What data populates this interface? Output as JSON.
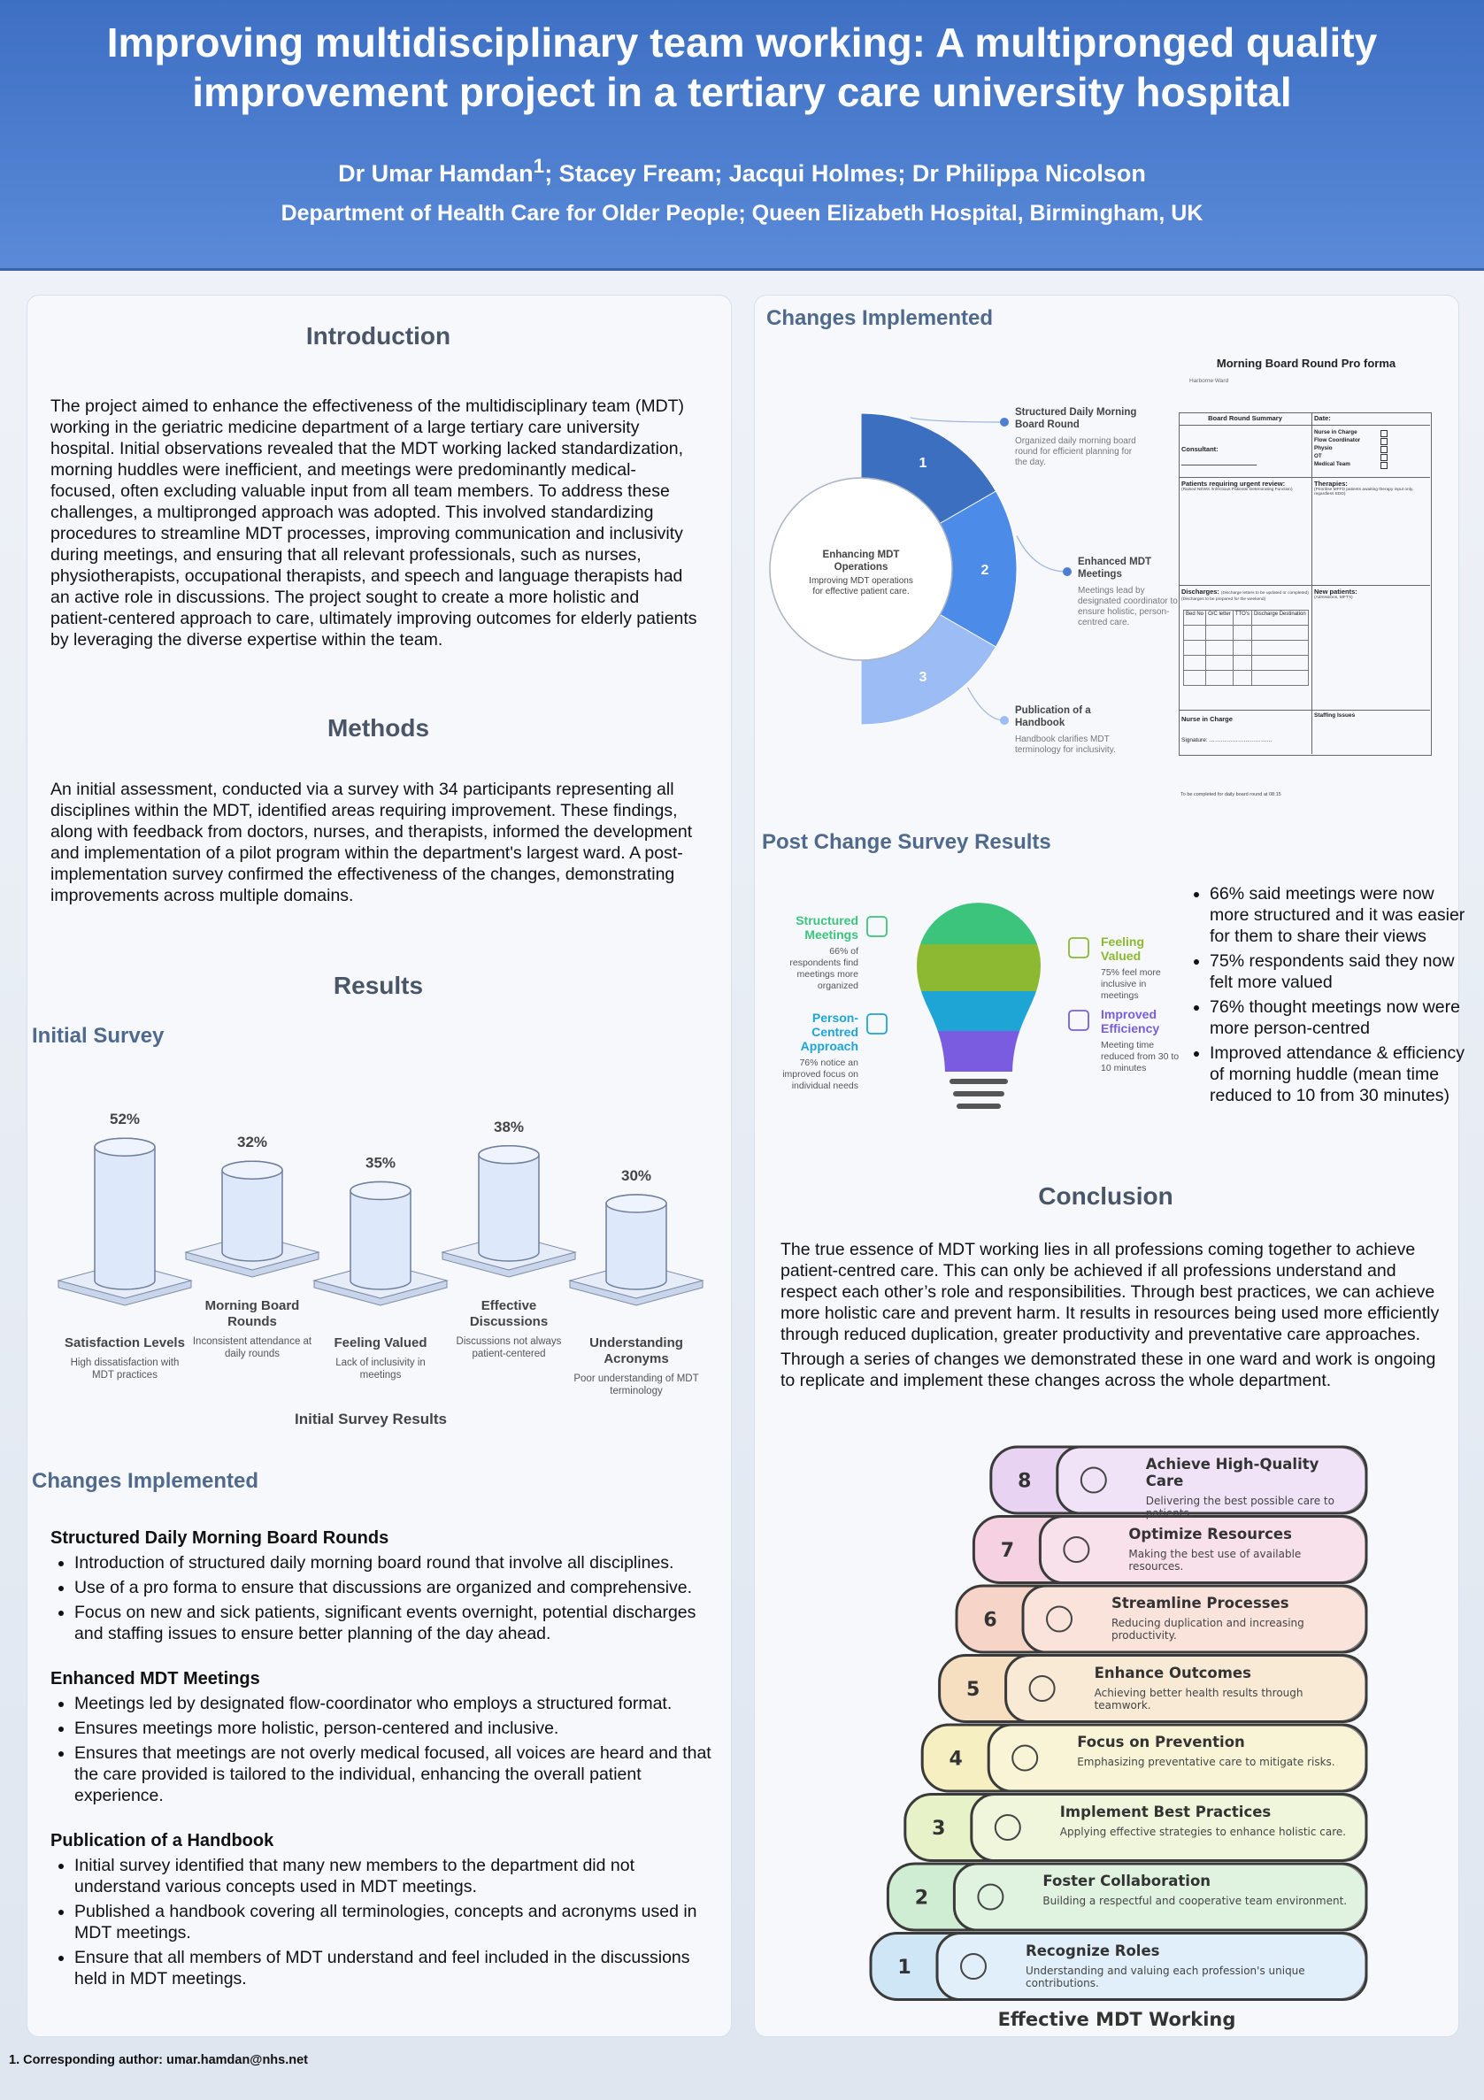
{
  "header": {
    "title": "Improving multidisciplinary team working: A multipronged quality improvement project in a tertiary care university hospital",
    "first_author": "Dr Umar Hamdan",
    "first_author_mark": "1",
    "other_authors": "; Stacey Fream; Jacqui Holmes; Dr Philippa Nicolson",
    "department": "Department of Health Care for Older People; Queen Elizabeth Hospital, Birmingham, UK"
  },
  "introduction": {
    "heading": "Introduction",
    "text": "The project aimed to enhance the effectiveness of the multidisciplinary team (MDT) working in the geriatric medicine department of a large tertiary care university hospital. Initial observations revealed that the MDT working lacked standardization, morning huddles were inefficient, and meetings were predominantly medical-focused, often excluding valuable input from all team members. To address these challenges, a multipronged approach was adopted. This involved standardizing procedures to streamline MDT processes, improving communication and inclusivity during meetings, and ensuring that all relevant professionals, such as nurses, physiotherapists, occupational therapists, and speech and language therapists had an active role in discussions. The project sought to create a more holistic and patient-centered approach to care, ultimately improving outcomes for elderly patients by leveraging the diverse expertise within the team."
  },
  "methods": {
    "heading": "Methods",
    "text": "An initial assessment, conducted via a survey with 34 participants representing all disciplines within the MDT, identified areas requiring improvement. These findings, along with feedback from doctors, nurses, and therapists, informed the development and implementation of a pilot program within the department's largest ward. A post-implementation survey confirmed the effectiveness of the changes, demonstrating improvements across multiple domains."
  },
  "results": {
    "heading": "Results",
    "subheading": "Initial Survey",
    "chart": {
      "type": "bar",
      "title": "Initial Survey Results",
      "categories": [
        "Satisfaction Levels",
        "Morning Board Rounds",
        "Feeling Valued",
        "Effective Discussions",
        "Understanding Acronyms"
      ],
      "descriptions": [
        "High dissatisfaction with MDT practices",
        "Inconsistent attendance at daily rounds",
        "Lack of inclusivity in meetings",
        "Discussions not always patient-centered",
        "Poor understanding of MDT terminology"
      ],
      "values": [
        52,
        32,
        35,
        38,
        30
      ],
      "value_labels": [
        "52%",
        "32%",
        "35%",
        "38%",
        "30%"
      ],
      "color": "#dde8fb"
    }
  },
  "changes_left": {
    "heading": "Changes Implemented",
    "sections": [
      {
        "title": "Structured Daily Morning Board Rounds",
        "bullets": [
          "Introduction of structured daily morning board round that involve all disciplines.",
          "Use of a pro forma to ensure that discussions are organized and comprehensive.",
          "Focus on new and sick patients, significant events overnight, potential discharges and staffing issues to ensure better planning of the day ahead."
        ]
      },
      {
        "title": "Enhanced MDT Meetings",
        "bullets": [
          "Meetings led by designated flow-coordinator who employs a structured format.",
          "Ensures meetings more holistic, person-centered and inclusive.",
          "Ensures that meetings are not overly medical focused, all voices are heard and that the care provided is tailored to the individual, enhancing the overall patient experience."
        ]
      },
      {
        "title": "Publication of a Handbook",
        "bullets": [
          "Initial survey identified that many new members to the department did not understand various concepts used in MDT meetings.",
          "Published a handbook covering all terminologies, concepts and acronyms used in MDT meetings.",
          "Ensure that all members of MDT understand and feel included in the discussions held in MDT meetings."
        ]
      }
    ]
  },
  "changes_right": {
    "heading": "Changes Implemented",
    "diagram": {
      "center_title": "Enhancing MDT Operations",
      "center_text": "Improving MDT operations for effective patient care.",
      "segments": [
        {
          "number": "1",
          "title": "Structured Daily Morning Board Round",
          "text": "Organized daily morning board round for efficient planning for the day.",
          "color": "#3d6fc0"
        },
        {
          "number": "2",
          "title": "Enhanced MDT Meetings",
          "text": "Meetings lead by designated coordinator to ensure holistic, person-centred care.",
          "color": "#4d8be8"
        },
        {
          "number": "3",
          "title": "Publication of a Handbook",
          "text": "Handbook clarifies MDT terminology for inclusivity.",
          "color": "#9bbcf5"
        }
      ]
    },
    "pro_forma": {
      "title": "Morning Board Round Pro forma",
      "ward": "Harborne Ward",
      "summary": "Board Round Summary",
      "date": "Date:",
      "consultant": "Consultant:",
      "attendees": [
        "Nurse in Charge",
        "Flow Coordinator",
        "Physio",
        "OT",
        "Medical Team"
      ],
      "urgent": "Patients requiring urgent review:",
      "urgent_note": "(Raised NEWS /Infectious Patients/ Deteriorating Function)",
      "therapies": "Therapies:",
      "therapies_note": "(Prioritise MFFD patients awaiting therapy input only, regardless EDD)",
      "discharges": "Discharges:",
      "discharges_note": "(Discharge letters to be updated or completed) (Discharges to be prepared for the weekend)",
      "new_patients": "New patients:",
      "new_patients_note": "(Admissions, MFT's)",
      "discharge_columns": [
        "Bed No",
        "O/C letter",
        "TTO's",
        "Discharge Destination"
      ],
      "nurse": "Nurse in Charge",
      "signature": "Signature: ……………………………",
      "staffing": "Staffing Issues",
      "footer": "To be completed for daily board round at 08:15"
    }
  },
  "post_change": {
    "heading": "Post Change Survey Results",
    "bulb": [
      {
        "title": "Structured Meetings",
        "text": "66% of respondents find meetings more organized",
        "color": "#3cc47c"
      },
      {
        "title": "Feeling Valued",
        "text": "75% feel more inclusive in meetings",
        "color": "#8db832"
      },
      {
        "title": "Person-Centred Approach",
        "text": "76% notice an improved focus on individual needs",
        "color": "#1ea5d6"
      },
      {
        "title": "Improved Efficiency",
        "text": "Meeting time reduced from 30 to 10 minutes",
        "color": "#7a5ce0"
      }
    ],
    "bullets": [
      "66% said meetings were now more structured and it was easier for them to share their views",
      "75% respondents said they now felt more valued",
      "76% thought meetings now were more person-centred",
      "Improved attendance & efficiency of morning huddle (mean time reduced to 10 from 30 minutes)"
    ]
  },
  "conclusion": {
    "heading": "Conclusion",
    "paragraphs": [
      "The true essence of MDT working lies in all professions coming together to achieve patient-centred care. This can only be achieved if all professions understand and respect each other’s role and responsibilities. Through best practices, we can achieve more holistic care and prevent harm. It results in resources being used more efficiently through reduced duplication, greater productivity and preventative care approaches.",
      "Through a series of changes we demonstrated these in one ward and work is ongoing to replicate and implement these changes across the whole department."
    ],
    "staircase": {
      "caption": "Effective MDT Working",
      "steps": [
        {
          "number": "1",
          "title": "Recognize Roles",
          "text": "Understanding and valuing each profession's unique contributions.",
          "color": "#9fd0f0"
        },
        {
          "number": "2",
          "title": "Foster Collaboration",
          "text": "Building a respectful and cooperative team environment.",
          "color": "#9fe0a0"
        },
        {
          "number": "3",
          "title": "Implement Best Practices",
          "text": "Applying effective strategies to enhance holistic care.",
          "color": "#d4ec8a"
        },
        {
          "number": "4",
          "title": "Focus on Prevention",
          "text": "Emphasizing preventative care to mitigate risks.",
          "color": "#f6e57a"
        },
        {
          "number": "5",
          "title": "Enhance Outcomes",
          "text": "Achieving better health results through teamwork.",
          "color": "#f7c27a"
        },
        {
          "number": "6",
          "title": "Streamline Processes",
          "text": "Reducing duplication and increasing productivity.",
          "color": "#f6a98a"
        },
        {
          "number": "7",
          "title": "Optimize Resources",
          "text": "Making the best use of available resources.",
          "color": "#f3a2c0"
        },
        {
          "number": "8",
          "title": "Achieve High-Quality Care",
          "text": "Delivering the best possible care to patients.",
          "color": "#d9a6e8"
        }
      ]
    }
  },
  "footnote": "1. Corresponding author: umar.hamdan@nhs.net"
}
